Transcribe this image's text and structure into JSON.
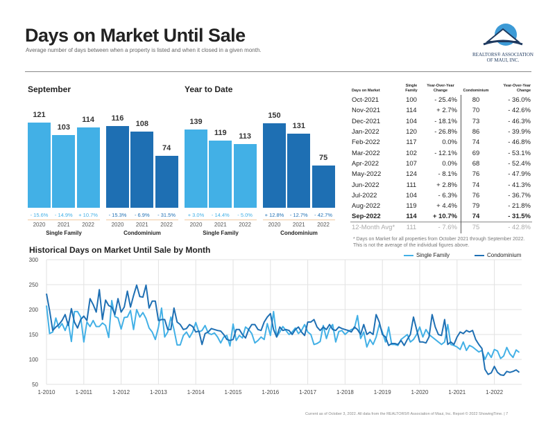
{
  "header": {
    "title": "Days on Market Until Sale",
    "subtitle": "Average number of days between when a property is listed and when it closed in a given month.",
    "logo_text": [
      "REALTORS® ASSOCIATION",
      "OF MAUI, INC."
    ]
  },
  "colors": {
    "single_family": "#42b0e6",
    "condominium": "#1e6fb3"
  },
  "september": {
    "title": "September",
    "groups": [
      {
        "label": "Single Family",
        "years": [
          "2020",
          "2021",
          "2022"
        ],
        "values": [
          121,
          103,
          114
        ],
        "changes": [
          "- 15.6%",
          "- 14.9%",
          "+ 10.7%"
        ]
      },
      {
        "label": "Condominium",
        "years": [
          "2020",
          "2021",
          "2022"
        ],
        "values": [
          116,
          108,
          74
        ],
        "changes": [
          "- 15.3%",
          "- 6.9%",
          "- 31.5%"
        ]
      }
    ]
  },
  "ytd": {
    "title": "Year to Date",
    "groups": [
      {
        "label": "Single Family",
        "years": [
          "2020",
          "2021",
          "2022"
        ],
        "values": [
          139,
          119,
          113
        ],
        "changes": [
          "+ 3.0%",
          "- 14.4%",
          "- 5.0%"
        ]
      },
      {
        "label": "Condominium",
        "years": [
          "2020",
          "2021",
          "2022"
        ],
        "values": [
          150,
          131,
          75
        ],
        "changes": [
          "+ 12.8%",
          "- 12.7%",
          "- 42.7%"
        ]
      }
    ]
  },
  "table": {
    "headers": [
      "Days on Market",
      "Single Family",
      "Year-Over-Year Change",
      "Condominium",
      "Year-Over-Year Change"
    ],
    "rows": [
      [
        "Oct-2021",
        "100",
        "- 25.4%",
        "80",
        "- 36.0%"
      ],
      [
        "Nov-2021",
        "114",
        "+ 2.7%",
        "70",
        "- 42.6%"
      ],
      [
        "Dec-2021",
        "104",
        "- 18.1%",
        "73",
        "- 46.3%"
      ],
      [
        "Jan-2022",
        "120",
        "- 26.8%",
        "86",
        "- 39.9%"
      ],
      [
        "Feb-2022",
        "117",
        "0.0%",
        "74",
        "- 46.8%"
      ],
      [
        "Mar-2022",
        "102",
        "- 12.1%",
        "69",
        "- 53.1%"
      ],
      [
        "Apr-2022",
        "107",
        "0.0%",
        "68",
        "- 52.4%"
      ],
      [
        "May-2022",
        "124",
        "- 8.1%",
        "76",
        "- 47.9%"
      ],
      [
        "Jun-2022",
        "111",
        "+ 2.8%",
        "74",
        "- 41.3%"
      ],
      [
        "Jul-2022",
        "104",
        "- 6.3%",
        "76",
        "- 36.7%"
      ],
      [
        "Aug-2022",
        "119",
        "+ 4.4%",
        "79",
        "- 21.8%"
      ],
      [
        "Sep-2022",
        "114",
        "+ 10.7%",
        "74",
        "- 31.5%"
      ],
      [
        "12-Month Avg*",
        "111",
        "- 7.6%",
        "75",
        "- 42.8%"
      ]
    ],
    "note": "* Days on Market for all properties from October 2021 through September 2022. This is not the average of the individual figures above."
  },
  "chart_data": {
    "type": "line",
    "title": "Historical Days on Market Until Sale by Month",
    "start": "2010-01",
    "ylim": [
      50,
      300
    ],
    "yticks": [
      50,
      100,
      150,
      200,
      250,
      300
    ],
    "xticks": [
      "1-2010",
      "1-2011",
      "1-2012",
      "1-2013",
      "1-2014",
      "1-2015",
      "1-2016",
      "1-2017",
      "1-2018",
      "1-2019",
      "1-2020",
      "1-2021",
      "1-2022"
    ],
    "legend_position": "top-right",
    "series": [
      {
        "name": "Single Family",
        "values": [
          208,
          152,
          155,
          183,
          163,
          172,
          158,
          175,
          136,
          196,
          196,
          185,
          135,
          175,
          166,
          178,
          166,
          166,
          173,
          168,
          144,
          218,
          186,
          183,
          161,
          184,
          185,
          198,
          160,
          200,
          185,
          194,
          182,
          163,
          155,
          140,
          165,
          203,
          145,
          155,
          185,
          160,
          129,
          129,
          148,
          155,
          144,
          155,
          174,
          155,
          158,
          168,
          153,
          150,
          153,
          145,
          133,
          145,
          148,
          127,
          171,
          138,
          148,
          143,
          165,
          160,
          152,
          133,
          138,
          145,
          140,
          172,
          148,
          196,
          145,
          155,
          166,
          158,
          150,
          155,
          163,
          152,
          158,
          170,
          155,
          150,
          130,
          132,
          136,
          168,
          142,
          162,
          170,
          135,
          156,
          158,
          150,
          156,
          160,
          162,
          188,
          142,
          155,
          125,
          140,
          130,
          145,
          170,
          155,
          135,
          165,
          130,
          130,
          128,
          140,
          145,
          150,
          135,
          140,
          150,
          165,
          145,
          160,
          150,
          145,
          140,
          135,
          130,
          135,
          170,
          130,
          128,
          125,
          120,
          135,
          118,
          128,
          125,
          120,
          115,
          118,
          100,
          114,
          104,
          120,
          117,
          102,
          107,
          124,
          111,
          104,
          119,
          114
        ]
      },
      {
        "name": "Condominium",
        "values": [
          232,
          198,
          158,
          165,
          170,
          178,
          190,
          168,
          202,
          175,
          163,
          180,
          187,
          178,
          222,
          210,
          195,
          240,
          180,
          219,
          208,
          205,
          190,
          222,
          195,
          205,
          237,
          205,
          228,
          249,
          226,
          225,
          249,
          203,
          217,
          217,
          178,
          180,
          180,
          160,
          160,
          203,
          175,
          170,
          160,
          162,
          170,
          166,
          155,
          157,
          130,
          152,
          155,
          162,
          160,
          158,
          157,
          150,
          140,
          138,
          140,
          160,
          160,
          150,
          143,
          160,
          170,
          170,
          160,
          158,
          175,
          185,
          192,
          160,
          145,
          165,
          158,
          160,
          158,
          150,
          160,
          165,
          155,
          148,
          175,
          175,
          180,
          165,
          158,
          165,
          160,
          170,
          160,
          158,
          165,
          162,
          160,
          158,
          155,
          165,
          160,
          150,
          170,
          150,
          155,
          150,
          190,
          175,
          150,
          145,
          128,
          132,
          132,
          130,
          138,
          128,
          140,
          150,
          185,
          160,
          135,
          135,
          133,
          145,
          190,
          165,
          150,
          148,
          180,
          130,
          135,
          130,
          145,
          155,
          152,
          158,
          155,
          158,
          140,
          130,
          122,
          80,
          70,
          73,
          86,
          74,
          69,
          68,
          76,
          74,
          76,
          79,
          74
        ]
      }
    ]
  },
  "footer": "Current as of October 3, 2022. All data from the REALTORS® Association of Maui, Inc. Report © 2022 ShowingTime.  |  7"
}
